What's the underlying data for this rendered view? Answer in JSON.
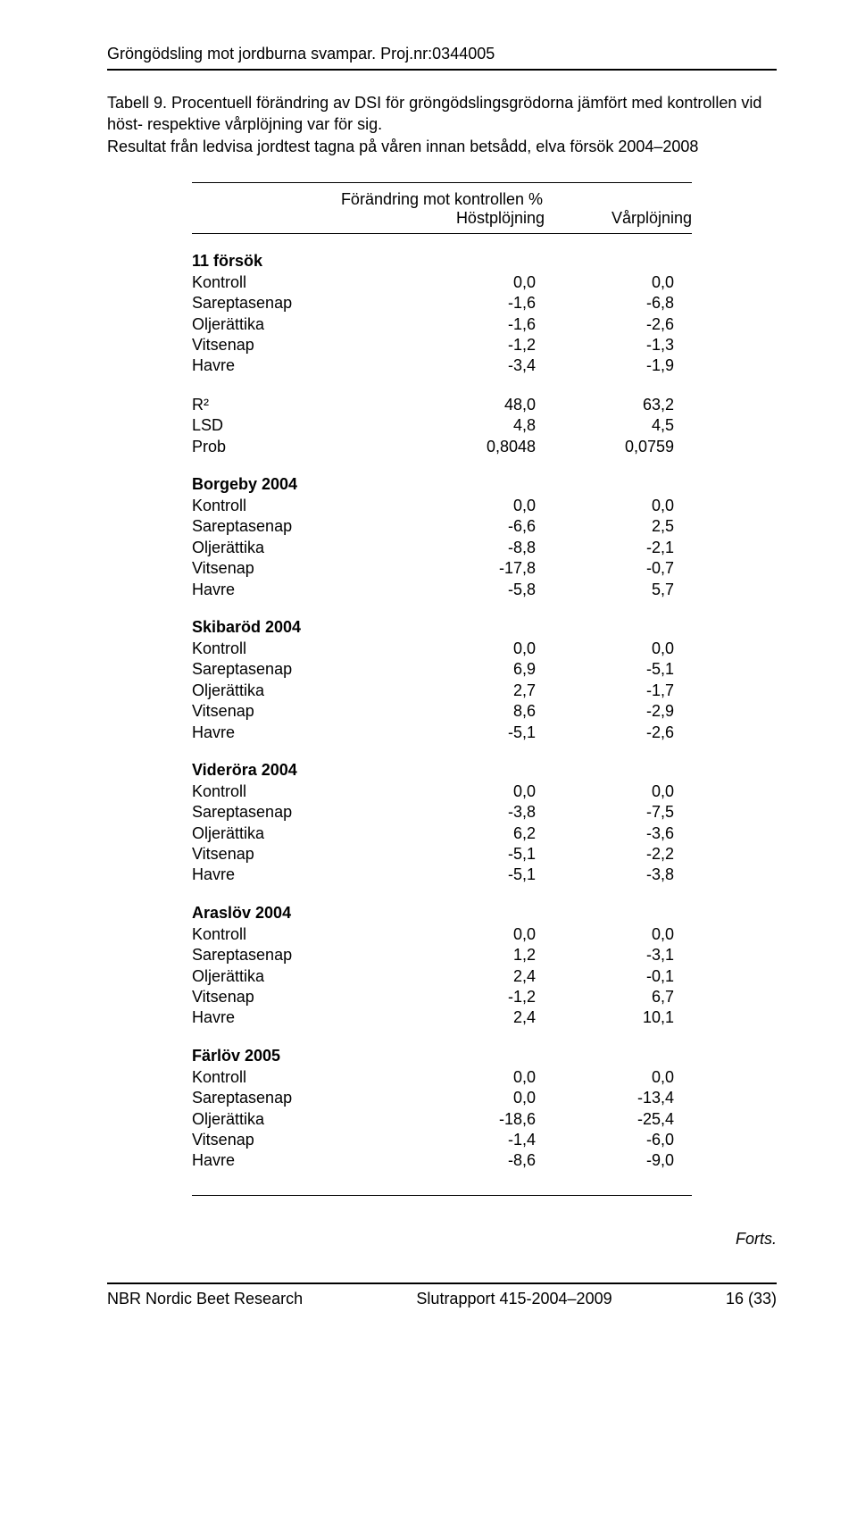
{
  "header": {
    "title": "Gröngödsling mot jordburna svampar. Proj.nr:0344005"
  },
  "intro": {
    "line1": "Tabell 9. Procentuell förändring av DSI för gröngödslingsgrödorna jämfört med kontrollen vid",
    "line2": "höst- respektive vårplöjning var för sig.",
    "line3": "Resultat från ledvisa jordtest tagna på våren innan betsådd, elva försök 2004–2008"
  },
  "colhead": {
    "top": "Förändring mot kontrollen %",
    "left": "Höstplöjning",
    "right": "Vårplöjning"
  },
  "groups": [
    {
      "title": "11 försök",
      "rows": [
        [
          "Kontroll",
          "0,0",
          "0,0"
        ],
        [
          "Sareptasenap",
          "-1,6",
          "-6,8"
        ],
        [
          "Oljerättika",
          "-1,6",
          "-2,6"
        ],
        [
          "Vitsenap",
          "-1,2",
          "-1,3"
        ],
        [
          "Havre",
          "-3,4",
          "-1,9"
        ]
      ]
    },
    {
      "title": "",
      "rows": [
        [
          "R²",
          "48,0",
          "63,2"
        ],
        [
          "LSD",
          "4,8",
          "4,5"
        ],
        [
          "Prob",
          "0,8048",
          "0,0759"
        ]
      ]
    },
    {
      "title": "Borgeby 2004",
      "rows": [
        [
          "Kontroll",
          "0,0",
          "0,0"
        ],
        [
          "Sareptasenap",
          "-6,6",
          "2,5"
        ],
        [
          "Oljerättika",
          "-8,8",
          "-2,1"
        ],
        [
          "Vitsenap",
          "-17,8",
          "-0,7"
        ],
        [
          "Havre",
          "-5,8",
          "5,7"
        ]
      ]
    },
    {
      "title": "Skibaröd 2004",
      "rows": [
        [
          "Kontroll",
          "0,0",
          "0,0"
        ],
        [
          "Sareptasenap",
          "6,9",
          "-5,1"
        ],
        [
          "Oljerättika",
          "2,7",
          "-1,7"
        ],
        [
          "Vitsenap",
          "8,6",
          "-2,9"
        ],
        [
          "Havre",
          "-5,1",
          "-2,6"
        ]
      ]
    },
    {
      "title": "Videröra 2004",
      "rows": [
        [
          "Kontroll",
          "0,0",
          "0,0"
        ],
        [
          "Sareptasenap",
          "-3,8",
          "-7,5"
        ],
        [
          "Oljerättika",
          "6,2",
          "-3,6"
        ],
        [
          "Vitsenap",
          "-5,1",
          "-2,2"
        ],
        [
          "Havre",
          "-5,1",
          "-3,8"
        ]
      ]
    },
    {
      "title": "Araslöv 2004",
      "rows": [
        [
          "Kontroll",
          "0,0",
          "0,0"
        ],
        [
          "Sareptasenap",
          "1,2",
          "-3,1"
        ],
        [
          "Oljerättika",
          "2,4",
          "-0,1"
        ],
        [
          "Vitsenap",
          "-1,2",
          "6,7"
        ],
        [
          "Havre",
          "2,4",
          "10,1"
        ]
      ]
    },
    {
      "title": "Färlöv 2005",
      "rows": [
        [
          "Kontroll",
          "0,0",
          "0,0"
        ],
        [
          "Sareptasenap",
          "0,0",
          "-13,4"
        ],
        [
          "Oljerättika",
          "-18,6",
          "-25,4"
        ],
        [
          "Vitsenap",
          "-1,4",
          "-6,0"
        ],
        [
          "Havre",
          "-8,6",
          "-9,0"
        ]
      ]
    }
  ],
  "forts": "Forts.",
  "footer": {
    "left": "NBR Nordic Beet Research",
    "center": "Slutrapport 415-2004–2009",
    "right": "16 (33)"
  }
}
